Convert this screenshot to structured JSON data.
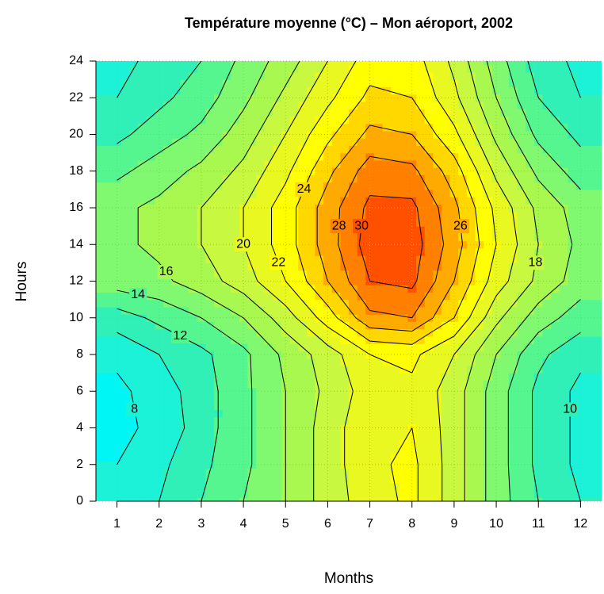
{
  "chart_data": {
    "type": "contour",
    "title": "Température moyenne (°C) – Mon aéroport, 2002",
    "xlabel": "Months",
    "ylabel": "Hours",
    "x": [
      1,
      2,
      3,
      4,
      5,
      6,
      7,
      8,
      9,
      10,
      11,
      12
    ],
    "y": [
      0,
      2,
      4,
      6,
      8,
      10,
      12,
      14,
      16,
      18,
      20,
      22,
      24
    ],
    "z": [
      [
        9,
        10,
        12,
        14,
        16,
        19,
        21,
        22.5,
        19,
        15,
        12,
        10
      ],
      [
        8,
        9.5,
        11.5,
        13.5,
        16,
        19,
        21.5,
        22.5,
        19,
        15,
        11.5,
        9.5
      ],
      [
        7.5,
        8.5,
        11,
        13.5,
        16,
        19,
        21.5,
        22,
        19,
        15,
        11.5,
        9.5
      ],
      [
        7.5,
        9,
        11,
        13.5,
        16,
        18.5,
        21,
        21.5,
        19,
        15,
        11.5,
        9.5
      ],
      [
        8.5,
        10,
        11.5,
        13.5,
        16.5,
        19,
        22,
        22.5,
        20,
        16,
        12.5,
        10.5
      ],
      [
        11,
        12.5,
        14,
        16,
        19,
        23,
        27.5,
        28,
        24,
        18.5,
        15,
        13
      ],
      [
        15,
        15.5,
        17,
        19,
        22,
        26,
        30,
        30.5,
        26,
        21,
        17.5,
        15
      ],
      [
        15.5,
        16.5,
        18,
        20,
        23,
        27,
        31,
        31,
        27,
        22,
        18,
        15.5
      ],
      [
        15.5,
        16.5,
        18,
        20,
        23,
        27,
        30.5,
        30.5,
        26.5,
        21.5,
        17.5,
        15
      ],
      [
        13.5,
        15,
        16.5,
        18.5,
        21.5,
        25.5,
        29,
        28.5,
        25,
        19.5,
        15.5,
        13
      ],
      [
        11.5,
        13,
        14.5,
        17,
        20,
        23.5,
        26.5,
        26,
        22.5,
        17.5,
        13.5,
        11.5
      ],
      [
        10,
        11.5,
        13,
        15.5,
        18.5,
        21.5,
        24.5,
        24,
        20.5,
        16,
        12,
        10
      ],
      [
        9.5,
        10.5,
        12,
        14.5,
        17,
        20,
        23,
        23,
        19.5,
        15,
        11,
        9.5
      ]
    ],
    "levels": [
      8,
      10,
      12,
      14,
      16,
      18,
      20,
      22,
      24,
      26,
      28,
      30
    ],
    "colors": [
      "#00f5f5",
      "#1bf2d8",
      "#30f0b8",
      "#55f590",
      "#80f870",
      "#a8f850",
      "#c8f840",
      "#e8f820",
      "#ffff00",
      "#ffd800",
      "#ffaa00",
      "#ff8000",
      "#ff5000"
    ],
    "xlim": [
      0.5,
      12.5
    ],
    "ylim": [
      0,
      24
    ],
    "xticks": [
      1,
      2,
      3,
      4,
      5,
      6,
      7,
      8,
      9,
      10,
      11,
      12
    ],
    "yticks": [
      0,
      2,
      4,
      6,
      8,
      10,
      12,
      14,
      16,
      18,
      20,
      22,
      24
    ],
    "grid": true
  }
}
